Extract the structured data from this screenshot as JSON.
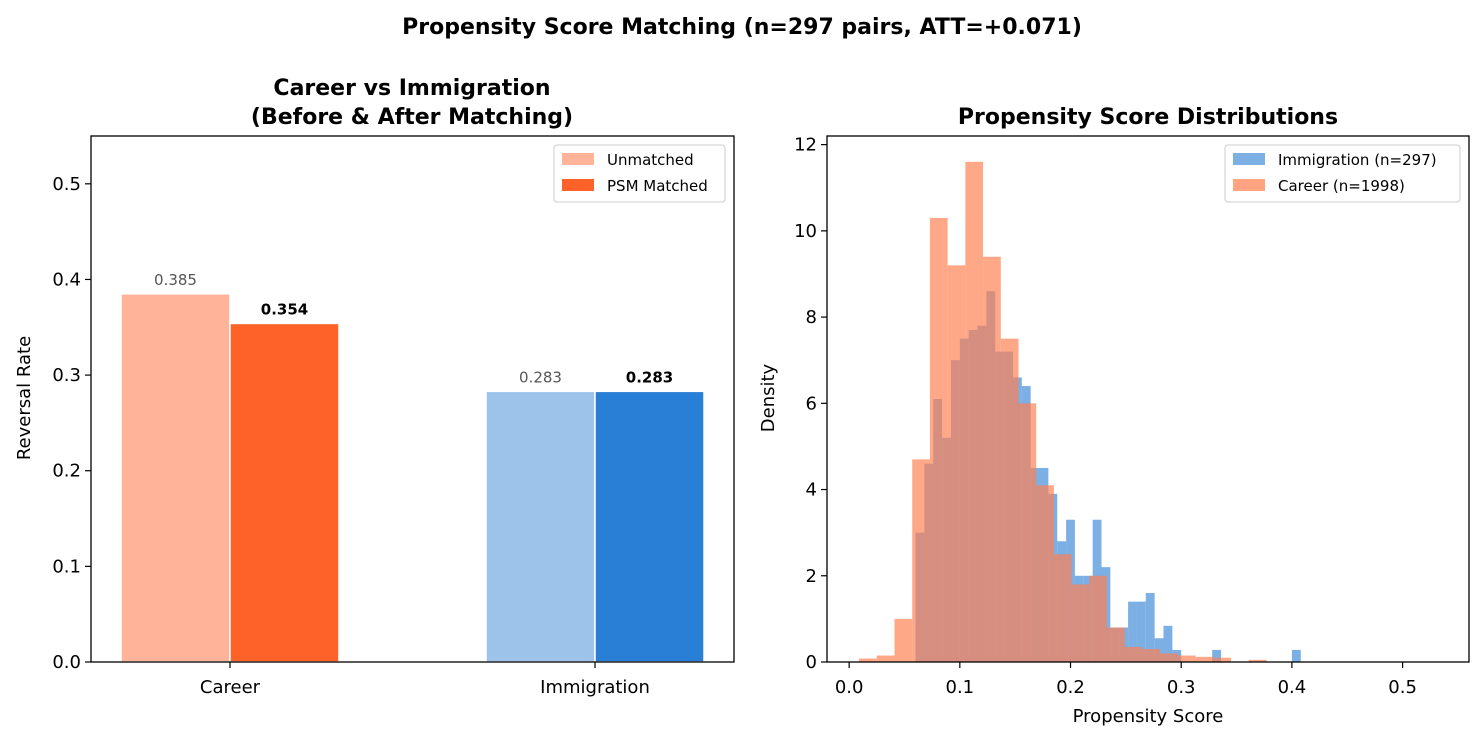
{
  "suptitle": "Propensity Score Matching (n=297 pairs, ATT=+0.071)",
  "chart_data": [
    {
      "type": "bar",
      "title_line1": "Career vs Immigration",
      "title_line2": "(Before & After Matching)",
      "xlabel": "",
      "ylabel": "Reversal Rate",
      "ylim": [
        0,
        0.55
      ],
      "yticks": [
        "0.0",
        "0.1",
        "0.2",
        "0.3",
        "0.4",
        "0.5"
      ],
      "categories": [
        "Career",
        "Immigration"
      ],
      "series": [
        {
          "name": "Unmatched",
          "values": [
            0.385,
            0.283
          ],
          "labels": [
            "0.385",
            "0.283"
          ],
          "colors": [
            "#FFB399",
            "#9DC3EA"
          ]
        },
        {
          "name": "PSM Matched",
          "values": [
            0.354,
            0.283
          ],
          "labels": [
            "0.354",
            "0.283"
          ],
          "colors": [
            "#FF6228",
            "#297ED6"
          ]
        }
      ],
      "legend_position": "upper right"
    },
    {
      "type": "histogram",
      "title": "Propensity Score Distributions",
      "xlabel": "Propensity Score",
      "ylabel": "Density",
      "xlim": [
        -0.02,
        0.56
      ],
      "ylim": [
        0,
        12.2
      ],
      "xticks": [
        "0.0",
        "0.1",
        "0.2",
        "0.3",
        "0.4",
        "0.5"
      ],
      "yticks": [
        "0",
        "2",
        "4",
        "6",
        "8",
        "10",
        "12"
      ],
      "legend_position": "upper right",
      "series": [
        {
          "name": "Immigration (n=297)",
          "color": "#4A90D9",
          "bins": [
            [
              0.06,
              0.068,
              3.0
            ],
            [
              0.068,
              0.076,
              4.6
            ],
            [
              0.076,
              0.084,
              6.1
            ],
            [
              0.084,
              0.092,
              5.2
            ],
            [
              0.092,
              0.1,
              7.0
            ],
            [
              0.1,
              0.108,
              7.5
            ],
            [
              0.108,
              0.116,
              7.7
            ],
            [
              0.116,
              0.124,
              7.8
            ],
            [
              0.124,
              0.132,
              8.6
            ],
            [
              0.132,
              0.14,
              7.2
            ],
            [
              0.14,
              0.148,
              7.2
            ],
            [
              0.148,
              0.156,
              6.6
            ],
            [
              0.156,
              0.164,
              6.4
            ],
            [
              0.164,
              0.172,
              4.5
            ],
            [
              0.172,
              0.18,
              4.5
            ],
            [
              0.18,
              0.188,
              3.9
            ],
            [
              0.188,
              0.196,
              2.8
            ],
            [
              0.196,
              0.204,
              3.3
            ],
            [
              0.204,
              0.212,
              2.0
            ],
            [
              0.212,
              0.22,
              2.0
            ],
            [
              0.22,
              0.228,
              3.3
            ],
            [
              0.228,
              0.236,
              2.2
            ],
            [
              0.236,
              0.244,
              0.8
            ],
            [
              0.244,
              0.252,
              0.8
            ],
            [
              0.252,
              0.26,
              1.4
            ],
            [
              0.26,
              0.268,
              1.4
            ],
            [
              0.268,
              0.276,
              1.6
            ],
            [
              0.276,
              0.284,
              0.55
            ],
            [
              0.284,
              0.292,
              0.84
            ],
            [
              0.292,
              0.3,
              0.28
            ],
            [
              0.328,
              0.336,
              0.28
            ],
            [
              0.4,
              0.408,
              0.28
            ]
          ]
        },
        {
          "name": "Career (n=1998)",
          "color": "#FF7F50",
          "bins": [
            [
              0.009,
              0.025,
              0.08
            ],
            [
              0.025,
              0.041,
              0.15
            ],
            [
              0.041,
              0.057,
              1.0
            ],
            [
              0.057,
              0.073,
              4.7
            ],
            [
              0.073,
              0.089,
              10.3
            ],
            [
              0.089,
              0.105,
              9.2
            ],
            [
              0.105,
              0.121,
              11.6
            ],
            [
              0.121,
              0.137,
              9.4
            ],
            [
              0.137,
              0.153,
              7.5
            ],
            [
              0.153,
              0.169,
              6.0
            ],
            [
              0.169,
              0.185,
              4.1
            ],
            [
              0.185,
              0.201,
              2.5
            ],
            [
              0.201,
              0.217,
              1.8
            ],
            [
              0.217,
              0.233,
              2.0
            ],
            [
              0.233,
              0.249,
              0.8
            ],
            [
              0.249,
              0.265,
              0.35
            ],
            [
              0.265,
              0.281,
              0.3
            ],
            [
              0.281,
              0.297,
              0.2
            ],
            [
              0.297,
              0.313,
              0.15
            ],
            [
              0.313,
              0.329,
              0.12
            ],
            [
              0.329,
              0.345,
              0.1
            ],
            [
              0.361,
              0.377,
              0.05
            ]
          ]
        }
      ]
    }
  ]
}
